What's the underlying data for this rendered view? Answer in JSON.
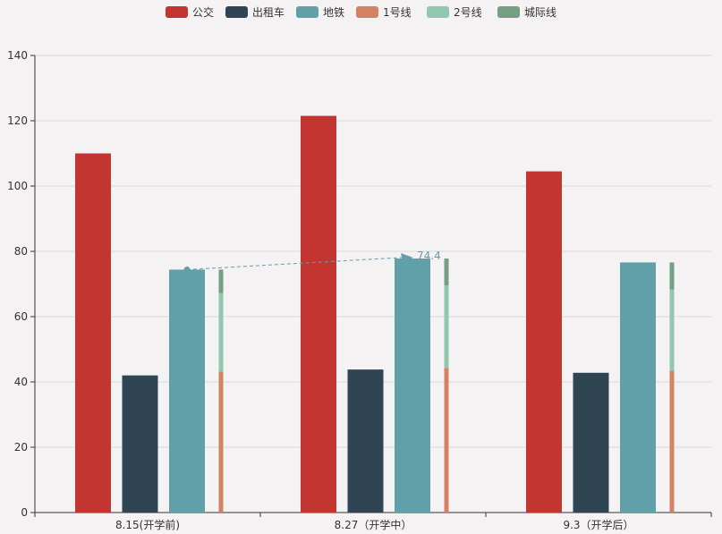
{
  "chart_data": {
    "type": "bar",
    "categories": [
      "8.15(开学前)",
      "8.27（开学中）",
      "9.3（开学后）"
    ],
    "series": [
      {
        "name": "公交",
        "color": "#c23531",
        "values": [
          110,
          121.5,
          104.5
        ]
      },
      {
        "name": "出租车",
        "color": "#2f4554",
        "values": [
          42,
          43.8,
          42.8
        ]
      },
      {
        "name": "地铁",
        "color": "#61a0a8",
        "values": [
          74.4,
          77.8,
          76.6
        ]
      }
    ],
    "stacked_series": [
      {
        "name": "1号线",
        "color": "#d48265",
        "values": [
          43.2,
          44.3,
          43.5
        ]
      },
      {
        "name": "2号线",
        "color": "#91c7ae",
        "values": [
          24,
          25.3,
          24.8
        ]
      },
      {
        "name": "城际线",
        "color": "#749f83",
        "values": [
          7.2,
          8.2,
          8.3
        ]
      }
    ],
    "legend": [
      "公交",
      "出租车",
      "地铁",
      "1号线",
      "2号线",
      "城际线"
    ],
    "legend_position": "top-center",
    "ylim": [
      0,
      140
    ],
    "yticks": [
      0,
      20,
      40,
      60,
      80,
      100,
      120,
      140
    ],
    "grid": true,
    "markline": {
      "series": "地铁",
      "from_category": 0,
      "to_category": 1,
      "from_value": 74.4,
      "to_value": 77.8,
      "label": "74.4"
    },
    "title": "",
    "xlabel": "",
    "ylabel": ""
  }
}
